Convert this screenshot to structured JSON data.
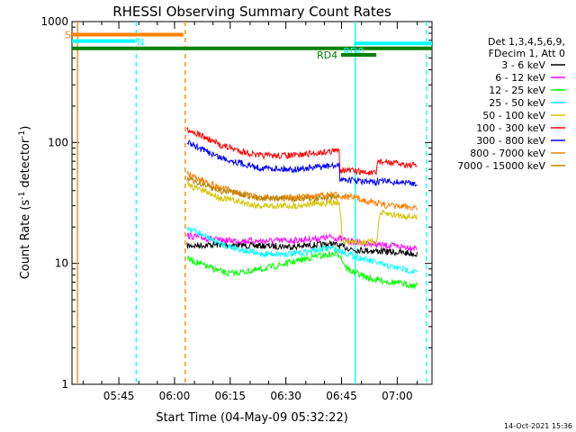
{
  "chart_data": {
    "type": "line",
    "title": "RHESSI Observing Summary Count Rates",
    "xlabel": "Start Time (04-May-09 05:32:22)",
    "ylabel_main": "Count Rate (s",
    "ylabel_sup": "-1",
    "ylabel_tail": " detector",
    "ylabel_sup2": "-1",
    "ylabel_close": ")",
    "yscale": "log",
    "ylim": [
      1,
      1000
    ],
    "xlim_minutes": [
      0,
      97
    ],
    "x_ticks": [
      {
        "label": "05:45",
        "m": 12.63
      },
      {
        "label": "06:00",
        "m": 27.63
      },
      {
        "label": "06:15",
        "m": 42.63
      },
      {
        "label": "06:30",
        "m": 57.63
      },
      {
        "label": "06:45",
        "m": 72.63
      },
      {
        "label": "07:00",
        "m": 87.63
      }
    ],
    "y_ticks": [
      {
        "label": "1",
        "v": 1
      },
      {
        "label": "10",
        "v": 10
      },
      {
        "label": "100",
        "v": 100
      },
      {
        "label": "1000",
        "v": 1000
      }
    ],
    "legend_header": [
      "Det 1,3,4,5,6,9,",
      "FDecim 1, Att 0"
    ],
    "legend_position": "right",
    "series": [
      {
        "name": "3 - 6 keV",
        "color": "#000000",
        "points": [
          [
            31,
            14
          ],
          [
            40,
            14.3
          ],
          [
            50,
            14
          ],
          [
            60,
            13.8
          ],
          [
            70,
            14.5
          ],
          [
            76,
            13
          ],
          [
            85,
            12.5
          ],
          [
            93,
            12
          ]
        ]
      },
      {
        "name": "6 - 12 keV",
        "color": "#ff00ff",
        "points": [
          [
            31,
            17
          ],
          [
            40,
            15.5
          ],
          [
            50,
            15.3
          ],
          [
            60,
            15.5
          ],
          [
            70,
            16.5
          ],
          [
            76,
            15
          ],
          [
            85,
            14
          ],
          [
            93,
            13.5
          ]
        ]
      },
      {
        "name": "12 - 25 keV",
        "color": "#00ff00",
        "points": [
          [
            31,
            11
          ],
          [
            36,
            9.5
          ],
          [
            42,
            8.2
          ],
          [
            50,
            8.8
          ],
          [
            58,
            10
          ],
          [
            66,
            11.5
          ],
          [
            72,
            12
          ],
          [
            74,
            9
          ],
          [
            80,
            7.5
          ],
          [
            93,
            6.5
          ]
        ]
      },
      {
        "name": "25 - 50 keV",
        "color": "#00ffff",
        "points": [
          [
            31,
            20
          ],
          [
            40,
            14.5
          ],
          [
            50,
            12
          ],
          [
            60,
            12
          ],
          [
            70,
            13.5
          ],
          [
            76,
            11.5
          ],
          [
            85,
            9.5
          ],
          [
            93,
            8.5
          ]
        ]
      },
      {
        "name": "50 - 100 keV",
        "color": "#d4c400",
        "points": [
          [
            31,
            45
          ],
          [
            40,
            35
          ],
          [
            50,
            30
          ],
          [
            60,
            30
          ],
          [
            70,
            32
          ],
          [
            72,
            32
          ],
          [
            73,
            15
          ],
          [
            82,
            15
          ],
          [
            83,
            26
          ],
          [
            93,
            24
          ]
        ]
      },
      {
        "name": "100 - 300 keV",
        "color": "#ff0000",
        "points": [
          [
            31,
            130
          ],
          [
            40,
            95
          ],
          [
            50,
            78
          ],
          [
            60,
            78
          ],
          [
            70,
            85
          ],
          [
            72,
            85
          ],
          [
            72.2,
            60
          ],
          [
            82,
            55
          ],
          [
            82.3,
            70
          ],
          [
            93,
            64
          ]
        ]
      },
      {
        "name": "300 - 800 keV",
        "color": "#0000ff",
        "points": [
          [
            31,
            100
          ],
          [
            40,
            75
          ],
          [
            50,
            62
          ],
          [
            60,
            60
          ],
          [
            70,
            64
          ],
          [
            72,
            64
          ],
          [
            72.2,
            50
          ],
          [
            82,
            46
          ],
          [
            82.3,
            48
          ],
          [
            93,
            46
          ]
        ]
      },
      {
        "name": "800 - 7000 keV",
        "color": "#ff8000",
        "points": [
          [
            31,
            55
          ],
          [
            40,
            42
          ],
          [
            50,
            35
          ],
          [
            60,
            35
          ],
          [
            70,
            37
          ],
          [
            76,
            35
          ],
          [
            85,
            30
          ],
          [
            93,
            29
          ]
        ]
      },
      {
        "name": "7000 - 15000 keV",
        "color": "#b8860b",
        "points": [
          [
            31,
            50
          ],
          [
            40,
            40
          ],
          [
            50,
            35
          ],
          [
            60,
            34
          ],
          [
            70,
            35
          ],
          [
            72,
            35
          ]
        ]
      }
    ],
    "flags": [
      {
        "label": "S",
        "color": "#ff8000",
        "start": 0,
        "end": 30,
        "value": 780
      },
      {
        "label": "N",
        "color": "#00ffff",
        "start": 0,
        "end": 17,
        "value": 690
      },
      {
        "label": "",
        "color": "#008000",
        "start": 0,
        "end": 97,
        "value": 600
      },
      {
        "label": "RD0",
        "color": "#00ffff",
        "start": 76,
        "end": 97,
        "value": 660
      },
      {
        "label": "RD4",
        "color": "#008000",
        "start": 72.5,
        "end": 82,
        "value": 530
      }
    ],
    "vertical_markers": [
      {
        "color": "#ff8000",
        "m": 1.5,
        "style": "solid"
      },
      {
        "color": "#00ffff",
        "m": 17.3,
        "style": "dashed"
      },
      {
        "color": "#ff8000",
        "m": 30.5,
        "style": "dashed"
      },
      {
        "color": "#00ffff",
        "m": 76.3,
        "style": "solid"
      },
      {
        "color": "#00ffff",
        "m": 95.5,
        "style": "dashed"
      }
    ]
  },
  "timestamp": "14-Oct-2021 15:36"
}
